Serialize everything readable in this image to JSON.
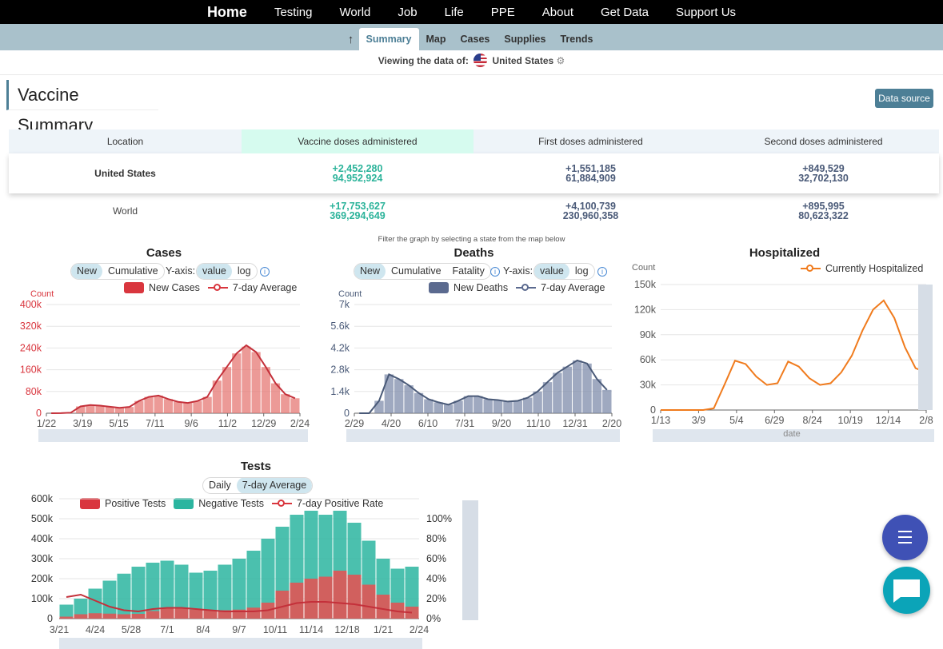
{
  "nav": {
    "items": [
      "Home",
      "Testing",
      "World",
      "Job",
      "Life",
      "PPE",
      "About",
      "Get Data",
      "Support Us"
    ]
  },
  "subnav": {
    "up_icon": "arrow-up-icon",
    "tabs": [
      "Summary",
      "Map",
      "Cases",
      "Supplies",
      "Trends"
    ],
    "active": "Summary"
  },
  "viewing": {
    "label": "Viewing the data of:",
    "country": "United States",
    "flag_icon": "us-flag-icon",
    "gear_icon": "gear-icon"
  },
  "page": {
    "title": "Vaccine Summary",
    "data_source": "Data source"
  },
  "vaccine_table": {
    "headers": [
      "Location",
      "Vaccine doses administered",
      "First doses administered",
      "Second doses administered"
    ],
    "rows": [
      {
        "location": "United States",
        "doses_new": "+2,452,280",
        "doses_total": "94,952,924",
        "first_new": "+1,551,185",
        "first_total": "61,884,909",
        "second_new": "+849,529",
        "second_total": "32,702,130"
      },
      {
        "location": "World",
        "doses_new": "+17,753,627",
        "doses_total": "369,294,649",
        "first_new": "+4,100,739",
        "first_total": "230,960,358",
        "second_new": "+895,995",
        "second_total": "80,623,322"
      }
    ]
  },
  "filter_note": "Filter the graph by selecting a state from the map below",
  "controls": {
    "new": "New",
    "cumulative": "Cumulative",
    "fatality": "Fatality",
    "yaxis": "Y-axis:",
    "value": "value",
    "log": "log",
    "daily": "Daily",
    "avg": "7-day Average",
    "info_icon": "info-icon"
  },
  "colors": {
    "cases": "#d9363e",
    "deaths": "#5b6a8f",
    "hosp": "#f07b1d",
    "positive": "#d9363e",
    "negative": "#2bb5a0",
    "accent": "#4d7f96"
  },
  "chart_data": [
    {
      "id": "cases",
      "type": "bar",
      "title": "Cases",
      "ylabel": "Count",
      "ylim": [
        0,
        400000
      ],
      "yticks": [
        "0",
        "80k",
        "160k",
        "240k",
        "320k",
        "400k"
      ],
      "xticks": [
        "1/22",
        "3/19",
        "5/15",
        "7/11",
        "9/6",
        "11/2",
        "12/29",
        "2/24"
      ],
      "series": [
        {
          "name": "New Cases",
          "values": [
            0,
            500,
            2000,
            25000,
            30000,
            28000,
            24000,
            20000,
            23000,
            45000,
            60000,
            65000,
            52000,
            42000,
            38000,
            45000,
            60000,
            120000,
            170000,
            220000,
            245000,
            225000,
            170000,
            110000,
            70000,
            55000
          ]
        },
        {
          "name": "7-day Average",
          "values": [
            0,
            500,
            2000,
            25000,
            30000,
            28000,
            24000,
            20000,
            23000,
            45000,
            60000,
            65000,
            52000,
            42000,
            38000,
            45000,
            60000,
            120000,
            170000,
            220000,
            250000,
            225000,
            170000,
            110000,
            70000,
            55000
          ]
        }
      ]
    },
    {
      "id": "deaths",
      "type": "bar",
      "title": "Deaths",
      "ylabel": "Count",
      "ylim": [
        0,
        7000
      ],
      "yticks": [
        "0",
        "1.4k",
        "2.8k",
        "4.2k",
        "5.6k",
        "7k"
      ],
      "xticks": [
        "2/29",
        "4/20",
        "6/10",
        "7/31",
        "9/20",
        "11/10",
        "12/31",
        "2/20"
      ],
      "series": [
        {
          "name": "New Deaths",
          "values": [
            0,
            0,
            800,
            2500,
            2200,
            1800,
            1300,
            900,
            700,
            550,
            800,
            1100,
            1100,
            900,
            850,
            750,
            800,
            1000,
            1400,
            2000,
            2600,
            3000,
            3400,
            3200,
            2200,
            1500
          ]
        },
        {
          "name": "7-day Average",
          "values": [
            0,
            0,
            800,
            2500,
            2200,
            1800,
            1300,
            900,
            700,
            550,
            800,
            1100,
            1100,
            900,
            850,
            750,
            800,
            1000,
            1400,
            2000,
            2600,
            3000,
            3400,
            3200,
            2200,
            1500
          ]
        }
      ]
    },
    {
      "id": "hospitalized",
      "type": "line",
      "title": "Hospitalized",
      "ylabel": "Count",
      "xlabel": "date",
      "ylim": [
        0,
        150000
      ],
      "yticks": [
        "0",
        "30k",
        "60k",
        "90k",
        "120k",
        "150k"
      ],
      "xticks": [
        "1/13",
        "3/9",
        "5/4",
        "6/29",
        "8/24",
        "10/19",
        "12/14",
        "2/8"
      ],
      "series": [
        {
          "name": "Currently Hospitalized",
          "values": [
            0,
            0,
            0,
            0,
            0,
            2000,
            30000,
            59000,
            55000,
            40000,
            30000,
            32000,
            58000,
            52000,
            38000,
            30000,
            32000,
            45000,
            65000,
            95000,
            120000,
            131000,
            110000,
            75000,
            50000,
            45000
          ]
        }
      ]
    },
    {
      "id": "tests",
      "type": "bar",
      "title": "Tests",
      "ylim": [
        0,
        600000
      ],
      "y2lim": [
        0,
        100
      ],
      "yticks": [
        "0",
        "100k",
        "200k",
        "300k",
        "400k",
        "500k",
        "600k"
      ],
      "y2ticks": [
        "0%",
        "20%",
        "40%",
        "60%",
        "80%",
        "100%"
      ],
      "xticks": [
        "3/21",
        "4/24",
        "5/28",
        "7/1",
        "8/4",
        "9/7",
        "10/11",
        "11/14",
        "12/18",
        "1/21",
        "2/24"
      ],
      "series": [
        {
          "name": "Positive Tests",
          "values": [
            10000,
            22000,
            27000,
            25000,
            22000,
            24000,
            38000,
            52000,
            52000,
            45000,
            40000,
            42000,
            45000,
            55000,
            80000,
            140000,
            180000,
            200000,
            210000,
            240000,
            220000,
            170000,
            120000,
            80000,
            60000
          ]
        },
        {
          "name": "Negative Tests",
          "values": [
            70000,
            100000,
            150000,
            190000,
            225000,
            260000,
            280000,
            290000,
            270000,
            230000,
            240000,
            270000,
            300000,
            340000,
            400000,
            460000,
            520000,
            540000,
            520000,
            540000,
            480000,
            390000,
            300000,
            250000,
            260000
          ]
        },
        {
          "name": "7-day Positive Rate",
          "values": [
            18,
            20,
            15,
            10,
            7,
            6,
            8,
            9,
            9,
            8,
            7,
            6,
            6,
            6,
            7,
            10,
            13,
            14,
            14,
            13,
            12,
            10,
            8,
            6,
            5
          ]
        }
      ]
    }
  ]
}
